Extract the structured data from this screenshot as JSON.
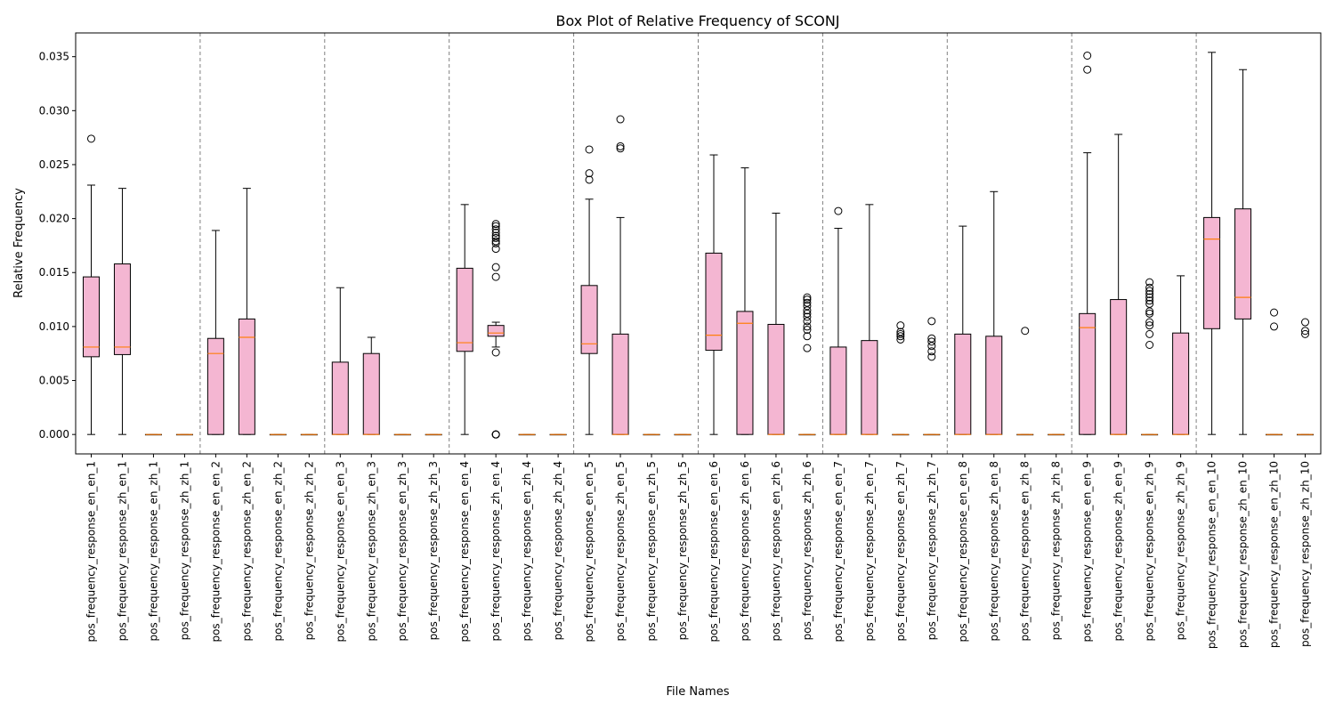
{
  "chart_data": {
    "type": "box",
    "title": "Box Plot of Relative Frequency of SCONJ",
    "xlabel": "File Names",
    "ylabel": "Relative Frequency",
    "ylim": [
      -0.0018,
      0.0372
    ],
    "yticks": [
      0.0,
      0.005,
      0.01,
      0.015,
      0.02,
      0.025,
      0.03,
      0.035
    ],
    "ytick_labels": [
      "0.000",
      "0.005",
      "0.010",
      "0.015",
      "0.020",
      "0.025",
      "0.030",
      "0.035"
    ],
    "group_size": 4,
    "colors": {
      "box_fill": "#f4b6d2",
      "median": "#ff7f0e",
      "separator": "#808080"
    },
    "boxes": [
      {
        "label": "pos_frequency_response_en_en_1",
        "whislo": 0.0,
        "q1": 0.0072,
        "med": 0.0081,
        "q3": 0.0146,
        "whishi": 0.0231,
        "fliers": [
          0.0274
        ]
      },
      {
        "label": "pos_frequency_response_zh_en_1",
        "whislo": 0.0,
        "q1": 0.0074,
        "med": 0.0081,
        "q3": 0.0158,
        "whishi": 0.0228,
        "fliers": []
      },
      {
        "label": "pos_frequency_response_en_zh_1",
        "whislo": 0.0,
        "q1": 0.0,
        "med": 0.0,
        "q3": 0.0,
        "whishi": 0.0,
        "fliers": []
      },
      {
        "label": "pos_frequency_response_zh_zh_1",
        "whislo": 0.0,
        "q1": 0.0,
        "med": 0.0,
        "q3": 0.0,
        "whishi": 0.0,
        "fliers": []
      },
      {
        "label": "pos_frequency_response_en_en_2",
        "whislo": 0.0,
        "q1": 0.0,
        "med": 0.0075,
        "q3": 0.0089,
        "whishi": 0.0189,
        "fliers": []
      },
      {
        "label": "pos_frequency_response_zh_en_2",
        "whislo": 0.0,
        "q1": 0.0,
        "med": 0.009,
        "q3": 0.0107,
        "whishi": 0.0228,
        "fliers": []
      },
      {
        "label": "pos_frequency_response_en_zh_2",
        "whislo": 0.0,
        "q1": 0.0,
        "med": 0.0,
        "q3": 0.0,
        "whishi": 0.0,
        "fliers": []
      },
      {
        "label": "pos_frequency_response_zh_zh_2",
        "whislo": 0.0,
        "q1": 0.0,
        "med": 0.0,
        "q3": 0.0,
        "whishi": 0.0,
        "fliers": []
      },
      {
        "label": "pos_frequency_response_en_en_3",
        "whislo": 0.0,
        "q1": 0.0,
        "med": 0.0,
        "q3": 0.0067,
        "whishi": 0.0136,
        "fliers": []
      },
      {
        "label": "pos_frequency_response_zh_en_3",
        "whislo": 0.0,
        "q1": 0.0,
        "med": 0.0,
        "q3": 0.0075,
        "whishi": 0.009,
        "fliers": []
      },
      {
        "label": "pos_frequency_response_en_zh_3",
        "whislo": 0.0,
        "q1": 0.0,
        "med": 0.0,
        "q3": 0.0,
        "whishi": 0.0,
        "fliers": []
      },
      {
        "label": "pos_frequency_response_zh_zh_3",
        "whislo": 0.0,
        "q1": 0.0,
        "med": 0.0,
        "q3": 0.0,
        "whishi": 0.0,
        "fliers": []
      },
      {
        "label": "pos_frequency_response_en_en_4",
        "whislo": 0.0,
        "q1": 0.0077,
        "med": 0.0085,
        "q3": 0.0154,
        "whishi": 0.0213,
        "fliers": []
      },
      {
        "label": "pos_frequency_response_zh_en_4",
        "whislo": 0.0081,
        "q1": 0.0091,
        "med": 0.0094,
        "q3": 0.0101,
        "whishi": 0.0104,
        "fliers": [
          0.0,
          0.0,
          0.0,
          0.0,
          0.0076,
          0.0146,
          0.0155,
          0.0172,
          0.0177,
          0.0179,
          0.0182,
          0.0184,
          0.0187,
          0.019,
          0.0193,
          0.0195
        ]
      },
      {
        "label": "pos_frequency_response_en_zh_4",
        "whislo": 0.0,
        "q1": 0.0,
        "med": 0.0,
        "q3": 0.0,
        "whishi": 0.0,
        "fliers": []
      },
      {
        "label": "pos_frequency_response_zh_zh_4",
        "whislo": 0.0,
        "q1": 0.0,
        "med": 0.0,
        "q3": 0.0,
        "whishi": 0.0,
        "fliers": []
      },
      {
        "label": "pos_frequency_response_en_en_5",
        "whislo": 0.0,
        "q1": 0.0075,
        "med": 0.0084,
        "q3": 0.0138,
        "whishi": 0.0218,
        "fliers": [
          0.0236,
          0.0242,
          0.0264
        ]
      },
      {
        "label": "pos_frequency_response_zh_en_5",
        "whislo": 0.0,
        "q1": 0.0,
        "med": 0.0,
        "q3": 0.0093,
        "whishi": 0.0201,
        "fliers": [
          0.0265,
          0.0267,
          0.0292
        ]
      },
      {
        "label": "pos_frequency_response_en_zh_5",
        "whislo": 0.0,
        "q1": 0.0,
        "med": 0.0,
        "q3": 0.0,
        "whishi": 0.0,
        "fliers": []
      },
      {
        "label": "pos_frequency_response_zh_zh_5",
        "whislo": 0.0,
        "q1": 0.0,
        "med": 0.0,
        "q3": 0.0,
        "whishi": 0.0,
        "fliers": []
      },
      {
        "label": "pos_frequency_response_en_en_6",
        "whislo": 0.0,
        "q1": 0.0078,
        "med": 0.0092,
        "q3": 0.0168,
        "whishi": 0.0259,
        "fliers": []
      },
      {
        "label": "pos_frequency_response_zh_en_6",
        "whislo": 0.0,
        "q1": 0.0,
        "med": 0.0103,
        "q3": 0.0114,
        "whishi": 0.0247,
        "fliers": []
      },
      {
        "label": "pos_frequency_response_en_zh_6",
        "whislo": 0.0,
        "q1": 0.0,
        "med": 0.0,
        "q3": 0.0102,
        "whishi": 0.0205,
        "fliers": []
      },
      {
        "label": "pos_frequency_response_zh_zh_6",
        "whislo": 0.0,
        "q1": 0.0,
        "med": 0.0,
        "q3": 0.0,
        "whishi": 0.0,
        "fliers": [
          0.008,
          0.0091,
          0.0097,
          0.01,
          0.0105,
          0.0109,
          0.0112,
          0.0115,
          0.0119,
          0.0122,
          0.0125,
          0.0127
        ]
      },
      {
        "label": "pos_frequency_response_en_en_7",
        "whislo": 0.0,
        "q1": 0.0,
        "med": 0.0,
        "q3": 0.0081,
        "whishi": 0.0191,
        "fliers": [
          0.0207
        ]
      },
      {
        "label": "pos_frequency_response_zh_en_7",
        "whislo": 0.0,
        "q1": 0.0,
        "med": 0.0,
        "q3": 0.0087,
        "whishi": 0.0213,
        "fliers": []
      },
      {
        "label": "pos_frequency_response_en_zh_7",
        "whislo": 0.0,
        "q1": 0.0,
        "med": 0.0,
        "q3": 0.0,
        "whishi": 0.0,
        "fliers": [
          0.0088,
          0.0091,
          0.0093,
          0.0095,
          0.0101
        ]
      },
      {
        "label": "pos_frequency_response_zh_zh_7",
        "whislo": 0.0,
        "q1": 0.0,
        "med": 0.0,
        "q3": 0.0,
        "whishi": 0.0,
        "fliers": [
          0.0072,
          0.0077,
          0.0082,
          0.0086,
          0.0089,
          0.0105
        ]
      },
      {
        "label": "pos_frequency_response_en_en_8",
        "whislo": 0.0,
        "q1": 0.0,
        "med": 0.0,
        "q3": 0.0093,
        "whishi": 0.0193,
        "fliers": []
      },
      {
        "label": "pos_frequency_response_zh_en_8",
        "whislo": 0.0,
        "q1": 0.0,
        "med": 0.0,
        "q3": 0.0091,
        "whishi": 0.0225,
        "fliers": []
      },
      {
        "label": "pos_frequency_response_en_zh_8",
        "whislo": 0.0,
        "q1": 0.0,
        "med": 0.0,
        "q3": 0.0,
        "whishi": 0.0,
        "fliers": [
          0.0096
        ]
      },
      {
        "label": "pos_frequency_response_zh_zh_8",
        "whislo": 0.0,
        "q1": 0.0,
        "med": 0.0,
        "q3": 0.0,
        "whishi": 0.0,
        "fliers": []
      },
      {
        "label": "pos_frequency_response_en_en_9",
        "whislo": 0.0,
        "q1": 0.0,
        "med": 0.0099,
        "q3": 0.0112,
        "whishi": 0.0261,
        "fliers": [
          0.0338,
          0.0351
        ]
      },
      {
        "label": "pos_frequency_response_zh_en_9",
        "whislo": 0.0,
        "q1": 0.0,
        "med": 0.0,
        "q3": 0.0125,
        "whishi": 0.0278,
        "fliers": []
      },
      {
        "label": "pos_frequency_response_en_zh_9",
        "whislo": 0.0,
        "q1": 0.0,
        "med": 0.0,
        "q3": 0.0,
        "whishi": 0.0,
        "fliers": [
          0.0083,
          0.0093,
          0.0101,
          0.0104,
          0.0112,
          0.0114,
          0.0121,
          0.0124,
          0.0127,
          0.013,
          0.0133,
          0.0136,
          0.0141
        ]
      },
      {
        "label": "pos_frequency_response_zh_zh_9",
        "whislo": 0.0,
        "q1": 0.0,
        "med": 0.0,
        "q3": 0.0094,
        "whishi": 0.0147,
        "fliers": []
      },
      {
        "label": "pos_frequency_response_en_en_10",
        "whislo": 0.0,
        "q1": 0.0098,
        "med": 0.0181,
        "q3": 0.0201,
        "whishi": 0.0354,
        "fliers": []
      },
      {
        "label": "pos_frequency_response_zh_en_10",
        "whislo": 0.0,
        "q1": 0.0107,
        "med": 0.0127,
        "q3": 0.0209,
        "whishi": 0.0338,
        "fliers": []
      },
      {
        "label": "pos_frequency_response_en_zh_10",
        "whislo": 0.0,
        "q1": 0.0,
        "med": 0.0,
        "q3": 0.0,
        "whishi": 0.0,
        "fliers": [
          0.01,
          0.0113
        ]
      },
      {
        "label": "pos_frequency_response_zh_zh_10",
        "whislo": 0.0,
        "q1": 0.0,
        "med": 0.0,
        "q3": 0.0,
        "whishi": 0.0,
        "fliers": [
          0.0093,
          0.0096,
          0.0104
        ]
      }
    ]
  }
}
